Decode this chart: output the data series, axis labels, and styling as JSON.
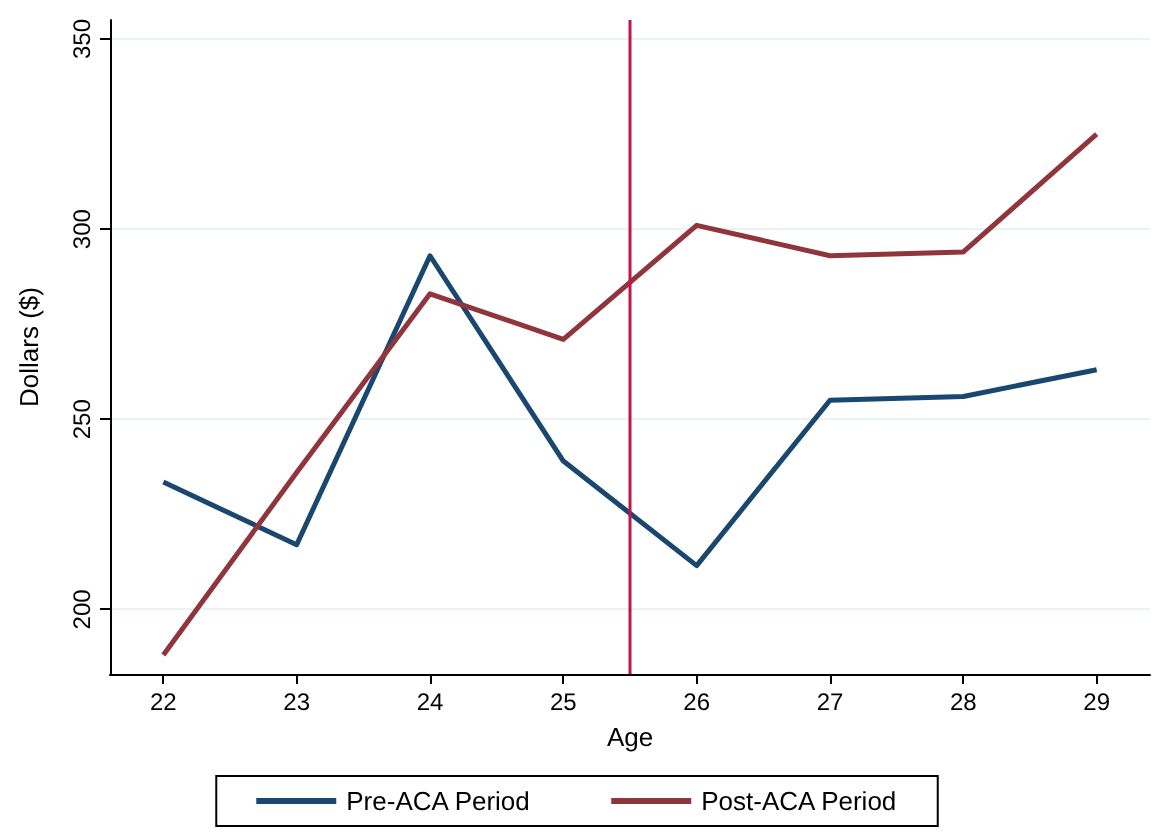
{
  "chart_data": {
    "type": "line",
    "xlabel": "Age",
    "ylabel": "Dollars ($)",
    "x": [
      22,
      23,
      24,
      25,
      26,
      27,
      28,
      29
    ],
    "series": [
      {
        "name": "Pre-ACA Period",
        "color": "#1a476f",
        "values": [
          233.5,
          217,
          293,
          239,
          211.5,
          255,
          256,
          263
        ]
      },
      {
        "name": "Post-ACA Period",
        "color": "#90353b",
        "values": [
          188,
          236,
          283,
          271,
          301,
          293,
          294,
          325
        ]
      }
    ],
    "xlim": [
      21.6,
      29.4
    ],
    "xticks": [
      22,
      23,
      24,
      25,
      26,
      27,
      28,
      29
    ],
    "ylim": [
      183,
      355
    ],
    "yticks": [
      200,
      250,
      300,
      350
    ],
    "ref_lines": [
      {
        "axis": "x",
        "value": 25.5,
        "color": "#c0164a"
      }
    ],
    "grid": "y",
    "legend": "bottom",
    "marker": "none",
    "line_style": "solid"
  }
}
